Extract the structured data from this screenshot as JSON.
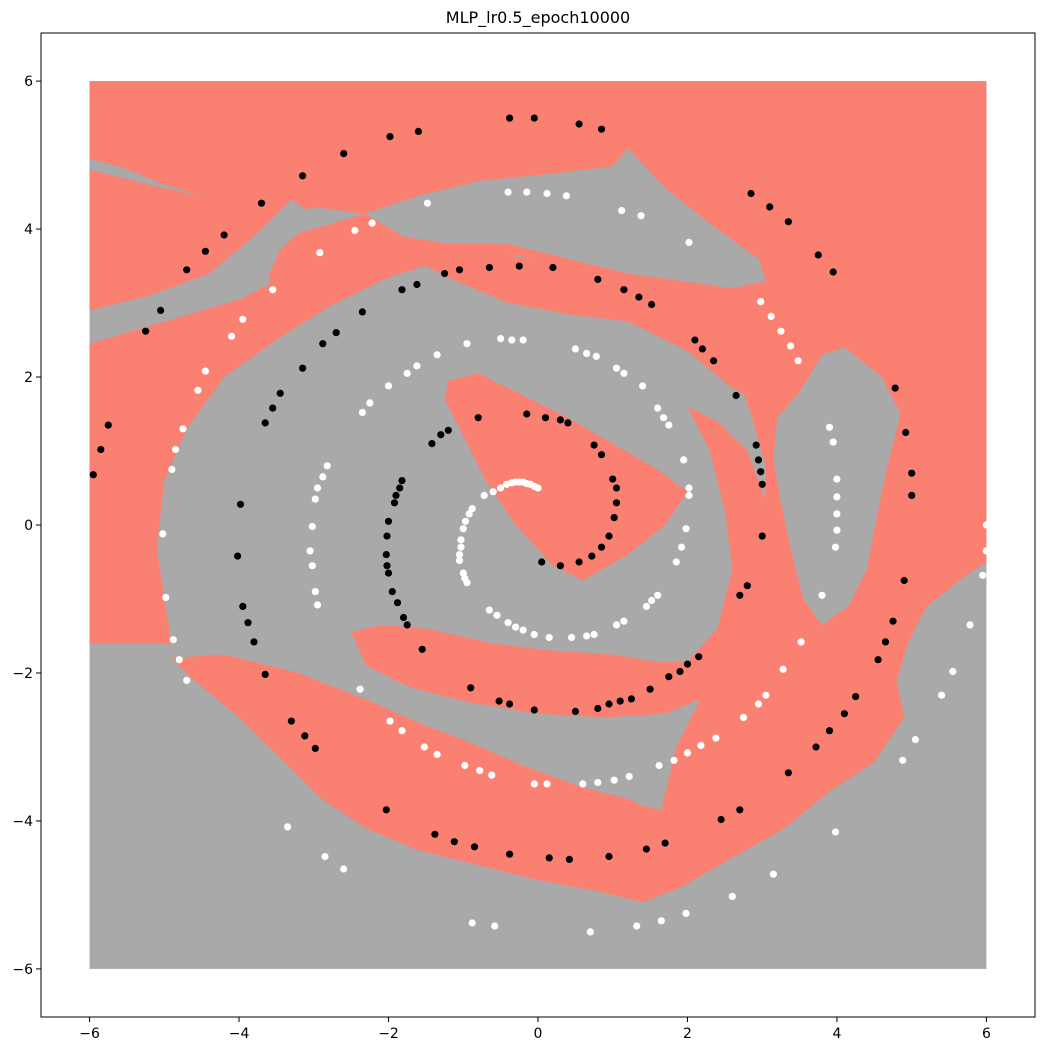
{
  "chart_data": {
    "type": "scatter",
    "title": "MLP_lr0.5_epoch10000",
    "xlabel": "",
    "ylabel": "",
    "xlim": [
      -6.65,
      6.65
    ],
    "ylim": [
      -6.65,
      6.65
    ],
    "xticks": [
      -6,
      -4,
      -2,
      0,
      2,
      4,
      6
    ],
    "yticks": [
      -6,
      -4,
      -2,
      0,
      2,
      4,
      6
    ],
    "xtick_labels": [
      "−6",
      "−4",
      "−2",
      "0",
      "2",
      "4",
      "6"
    ],
    "ytick_labels": [
      "−6",
      "−4",
      "−2",
      "0",
      "2",
      "4",
      "6"
    ],
    "grid": false,
    "background": {
      "description_type": "decision_regions",
      "domain": [
        -6,
        6
      ],
      "class_colors": {
        "class_0": "#a9a9a9",
        "class_1": "#fa8072"
      }
    },
    "series": [
      {
        "color": "#000000",
        "points": [
          [
            0.3,
            -0.55
          ],
          [
            0.05,
            -0.5
          ],
          [
            0.55,
            -0.5
          ],
          [
            0.72,
            -0.42
          ],
          [
            0.85,
            -0.3
          ],
          [
            0.95,
            -0.15
          ],
          [
            1.02,
            0.1
          ],
          [
            1.05,
            0.3
          ],
          [
            1.05,
            0.5
          ],
          [
            1.0,
            0.62
          ],
          [
            0.85,
            0.95
          ],
          [
            0.75,
            1.08
          ],
          [
            0.4,
            1.38
          ],
          [
            0.3,
            1.42
          ],
          [
            0.1,
            1.45
          ],
          [
            -0.15,
            1.5
          ],
          [
            -0.8,
            1.45
          ],
          [
            -1.2,
            1.28
          ],
          [
            -1.3,
            1.22
          ],
          [
            -1.42,
            1.1
          ],
          [
            -1.82,
            0.6
          ],
          [
            -1.85,
            0.5
          ],
          [
            -1.9,
            0.4
          ],
          [
            -1.92,
            0.3
          ],
          [
            -2.0,
            0.05
          ],
          [
            -2.02,
            -0.15
          ],
          [
            -2.03,
            -0.4
          ],
          [
            -2.02,
            -0.55
          ],
          [
            -2.0,
            -0.65
          ],
          [
            -1.95,
            -0.9
          ],
          [
            -1.88,
            -1.05
          ],
          [
            -1.8,
            -1.25
          ],
          [
            -1.75,
            -1.35
          ],
          [
            -1.55,
            -1.68
          ],
          [
            -0.9,
            -2.2
          ],
          [
            -0.52,
            -2.38
          ],
          [
            -0.38,
            -2.42
          ],
          [
            -0.05,
            -2.5
          ],
          [
            0.5,
            -2.52
          ],
          [
            0.8,
            -2.48
          ],
          [
            0.95,
            -2.42
          ],
          [
            1.1,
            -2.38
          ],
          [
            1.25,
            -2.35
          ],
          [
            1.5,
            -2.22
          ],
          [
            1.75,
            -2.05
          ],
          [
            1.9,
            -1.98
          ],
          [
            2.0,
            -1.88
          ],
          [
            2.15,
            -1.78
          ],
          [
            2.7,
            -0.95
          ],
          [
            2.8,
            -0.82
          ],
          [
            3.0,
            -0.15
          ],
          [
            3.0,
            0.55
          ],
          [
            2.98,
            0.72
          ],
          [
            2.95,
            0.88
          ],
          [
            2.92,
            1.08
          ],
          [
            2.65,
            1.75
          ],
          [
            2.35,
            2.22
          ],
          [
            2.2,
            2.38
          ],
          [
            2.1,
            2.5
          ],
          [
            1.52,
            2.98
          ],
          [
            1.35,
            3.08
          ],
          [
            1.15,
            3.18
          ],
          [
            0.8,
            3.32
          ],
          [
            0.2,
            3.48
          ],
          [
            -0.25,
            3.5
          ],
          [
            -0.65,
            3.48
          ],
          [
            -1.05,
            3.45
          ],
          [
            -1.25,
            3.4
          ],
          [
            -1.62,
            3.25
          ],
          [
            -1.82,
            3.18
          ],
          [
            -2.35,
            2.88
          ],
          [
            -2.7,
            2.6
          ],
          [
            -2.88,
            2.45
          ],
          [
            -3.15,
            2.12
          ],
          [
            -3.45,
            1.78
          ],
          [
            -3.55,
            1.58
          ],
          [
            -3.65,
            1.38
          ],
          [
            -3.98,
            0.28
          ],
          [
            -4.02,
            -0.42
          ],
          [
            -3.95,
            -1.1
          ],
          [
            -3.88,
            -1.32
          ],
          [
            -3.8,
            -1.58
          ],
          [
            -3.65,
            -2.02
          ],
          [
            -3.3,
            -2.65
          ],
          [
            -3.12,
            -2.85
          ],
          [
            -2.98,
            -3.02
          ],
          [
            -2.03,
            -3.85
          ],
          [
            -1.38,
            -4.18
          ],
          [
            -1.12,
            -4.28
          ],
          [
            -0.85,
            -4.35
          ],
          [
            -0.38,
            -4.45
          ],
          [
            0.15,
            -4.5
          ],
          [
            0.42,
            -4.52
          ],
          [
            0.95,
            -4.48
          ],
          [
            1.45,
            -4.38
          ],
          [
            1.7,
            -4.3
          ],
          [
            2.45,
            -3.98
          ],
          [
            2.7,
            -3.85
          ],
          [
            3.35,
            -3.35
          ],
          [
            3.72,
            -3.0
          ],
          [
            3.9,
            -2.78
          ],
          [
            4.1,
            -2.55
          ],
          [
            4.25,
            -2.32
          ],
          [
            4.55,
            -1.82
          ],
          [
            4.65,
            -1.58
          ],
          [
            4.75,
            -1.3
          ],
          [
            4.9,
            -0.75
          ],
          [
            5.0,
            0.4
          ],
          [
            5.0,
            0.7
          ],
          [
            4.92,
            1.25
          ],
          [
            4.78,
            1.85
          ],
          [
            3.95,
            3.42
          ],
          [
            3.75,
            3.65
          ],
          [
            3.35,
            4.1
          ],
          [
            3.1,
            4.3
          ],
          [
            2.85,
            4.48
          ],
          [
            0.85,
            5.35
          ],
          [
            0.55,
            5.42
          ],
          [
            -0.05,
            5.5
          ],
          [
            -0.38,
            5.5
          ],
          [
            -1.6,
            5.32
          ],
          [
            -1.98,
            5.25
          ],
          [
            -2.6,
            5.02
          ],
          [
            -3.15,
            4.72
          ],
          [
            -3.7,
            4.35
          ],
          [
            -4.2,
            3.92
          ],
          [
            -4.45,
            3.7
          ],
          [
            -4.7,
            3.45
          ],
          [
            -5.05,
            2.9
          ],
          [
            -5.25,
            2.62
          ],
          [
            -5.75,
            1.35
          ],
          [
            -5.85,
            1.02
          ],
          [
            -5.95,
            0.68
          ]
        ]
      },
      {
        "color": "#ffffff",
        "points": [
          [
            0.0,
            0.5
          ],
          [
            -0.05,
            0.52
          ],
          [
            -0.1,
            0.55
          ],
          [
            -0.15,
            0.56
          ],
          [
            -0.2,
            0.58
          ],
          [
            -0.25,
            0.58
          ],
          [
            -0.3,
            0.58
          ],
          [
            -0.35,
            0.57
          ],
          [
            -0.42,
            0.55
          ],
          [
            -0.5,
            0.5
          ],
          [
            -0.6,
            0.45
          ],
          [
            -0.72,
            0.4
          ],
          [
            -0.88,
            0.22
          ],
          [
            -0.92,
            0.15
          ],
          [
            -0.97,
            0.05
          ],
          [
            -1.0,
            -0.05
          ],
          [
            -1.03,
            -0.2
          ],
          [
            -1.03,
            -0.3
          ],
          [
            -1.05,
            -0.4
          ],
          [
            -1.05,
            -0.48
          ],
          [
            -1.0,
            -0.65
          ],
          [
            -0.98,
            -0.72
          ],
          [
            -0.95,
            -0.78
          ],
          [
            -0.65,
            -1.15
          ],
          [
            -0.55,
            -1.22
          ],
          [
            -0.4,
            -1.32
          ],
          [
            -0.3,
            -1.38
          ],
          [
            -0.2,
            -1.42
          ],
          [
            -0.05,
            -1.48
          ],
          [
            0.15,
            -1.52
          ],
          [
            0.45,
            -1.52
          ],
          [
            0.65,
            -1.5
          ],
          [
            0.75,
            -1.48
          ],
          [
            1.05,
            -1.35
          ],
          [
            1.15,
            -1.3
          ],
          [
            1.45,
            -1.1
          ],
          [
            1.52,
            -1.02
          ],
          [
            1.6,
            -0.95
          ],
          [
            1.85,
            -0.5
          ],
          [
            1.92,
            -0.3
          ],
          [
            1.98,
            -0.05
          ],
          [
            2.02,
            0.4
          ],
          [
            2.02,
            0.5
          ],
          [
            1.95,
            0.88
          ],
          [
            1.75,
            1.35
          ],
          [
            1.68,
            1.45
          ],
          [
            1.6,
            1.58
          ],
          [
            1.4,
            1.88
          ],
          [
            1.15,
            2.05
          ],
          [
            1.05,
            2.12
          ],
          [
            0.78,
            2.28
          ],
          [
            0.65,
            2.32
          ],
          [
            0.5,
            2.38
          ],
          [
            -0.2,
            2.5
          ],
          [
            -0.35,
            2.5
          ],
          [
            -0.5,
            2.52
          ],
          [
            -0.95,
            2.45
          ],
          [
            -1.35,
            2.3
          ],
          [
            -1.62,
            2.15
          ],
          [
            -1.75,
            2.05
          ],
          [
            -2.0,
            1.88
          ],
          [
            -2.25,
            1.65
          ],
          [
            -2.35,
            1.52
          ],
          [
            -2.82,
            0.8
          ],
          [
            -2.88,
            0.65
          ],
          [
            -2.95,
            0.5
          ],
          [
            -2.98,
            0.35
          ],
          [
            -3.02,
            -0.02
          ],
          [
            -3.05,
            -0.35
          ],
          [
            -3.02,
            -0.55
          ],
          [
            -2.98,
            -0.9
          ],
          [
            -2.95,
            -1.08
          ],
          [
            -2.38,
            -2.22
          ],
          [
            -1.98,
            -2.65
          ],
          [
            -1.82,
            -2.78
          ],
          [
            -1.52,
            -3.0
          ],
          [
            -1.35,
            -3.1
          ],
          [
            -0.98,
            -3.25
          ],
          [
            -0.78,
            -3.32
          ],
          [
            -0.62,
            -3.38
          ],
          [
            -0.05,
            -3.5
          ],
          [
            0.12,
            -3.5
          ],
          [
            0.6,
            -3.5
          ],
          [
            0.8,
            -3.48
          ],
          [
            1.02,
            -3.45
          ],
          [
            1.22,
            -3.4
          ],
          [
            1.62,
            -3.25
          ],
          [
            1.82,
            -3.18
          ],
          [
            2.0,
            -3.08
          ],
          [
            2.18,
            -2.98
          ],
          [
            2.38,
            -2.88
          ],
          [
            2.75,
            -2.6
          ],
          [
            2.95,
            -2.42
          ],
          [
            3.05,
            -2.3
          ],
          [
            3.28,
            -1.95
          ],
          [
            3.52,
            -1.58
          ],
          [
            3.8,
            -0.95
          ],
          [
            3.98,
            -0.3
          ],
          [
            4.0,
            -0.07
          ],
          [
            4.0,
            0.15
          ],
          [
            4.0,
            0.38
          ],
          [
            4.0,
            0.62
          ],
          [
            3.95,
            1.12
          ],
          [
            3.9,
            1.32
          ],
          [
            3.48,
            2.22
          ],
          [
            3.38,
            2.42
          ],
          [
            3.25,
            2.62
          ],
          [
            3.12,
            2.82
          ],
          [
            2.98,
            3.02
          ],
          [
            2.02,
            3.82
          ],
          [
            1.38,
            4.18
          ],
          [
            1.12,
            4.25
          ],
          [
            0.38,
            4.45
          ],
          [
            0.12,
            4.48
          ],
          [
            -0.15,
            4.5
          ],
          [
            -0.4,
            4.5
          ],
          [
            -1.48,
            4.35
          ],
          [
            -2.22,
            4.08
          ],
          [
            -2.45,
            3.98
          ],
          [
            -2.92,
            3.68
          ],
          [
            -3.55,
            3.18
          ],
          [
            -3.95,
            2.78
          ],
          [
            -4.1,
            2.55
          ],
          [
            -4.45,
            2.08
          ],
          [
            -4.55,
            1.82
          ],
          [
            -4.75,
            1.3
          ],
          [
            -4.85,
            1.02
          ],
          [
            -4.9,
            0.75
          ],
          [
            -5.02,
            -0.12
          ],
          [
            -4.98,
            -0.98
          ],
          [
            -4.88,
            -1.55
          ],
          [
            -4.8,
            -1.82
          ],
          [
            -4.7,
            -2.1
          ],
          [
            -3.35,
            -4.08
          ],
          [
            -2.85,
            -4.48
          ],
          [
            -2.6,
            -4.65
          ],
          [
            -0.88,
            -5.38
          ],
          [
            -0.58,
            -5.42
          ],
          [
            0.7,
            -5.5
          ],
          [
            1.32,
            -5.42
          ],
          [
            1.65,
            -5.35
          ],
          [
            1.98,
            -5.25
          ],
          [
            2.6,
            -5.02
          ],
          [
            3.15,
            -4.72
          ],
          [
            3.98,
            -4.15
          ],
          [
            4.88,
            -3.18
          ],
          [
            5.05,
            -2.9
          ],
          [
            5.4,
            -2.3
          ],
          [
            5.55,
            -1.98
          ],
          [
            5.78,
            -1.35
          ],
          [
            5.95,
            -0.68
          ],
          [
            6.0,
            -0.35
          ],
          [
            6.0,
            0.0
          ]
        ]
      }
    ]
  }
}
